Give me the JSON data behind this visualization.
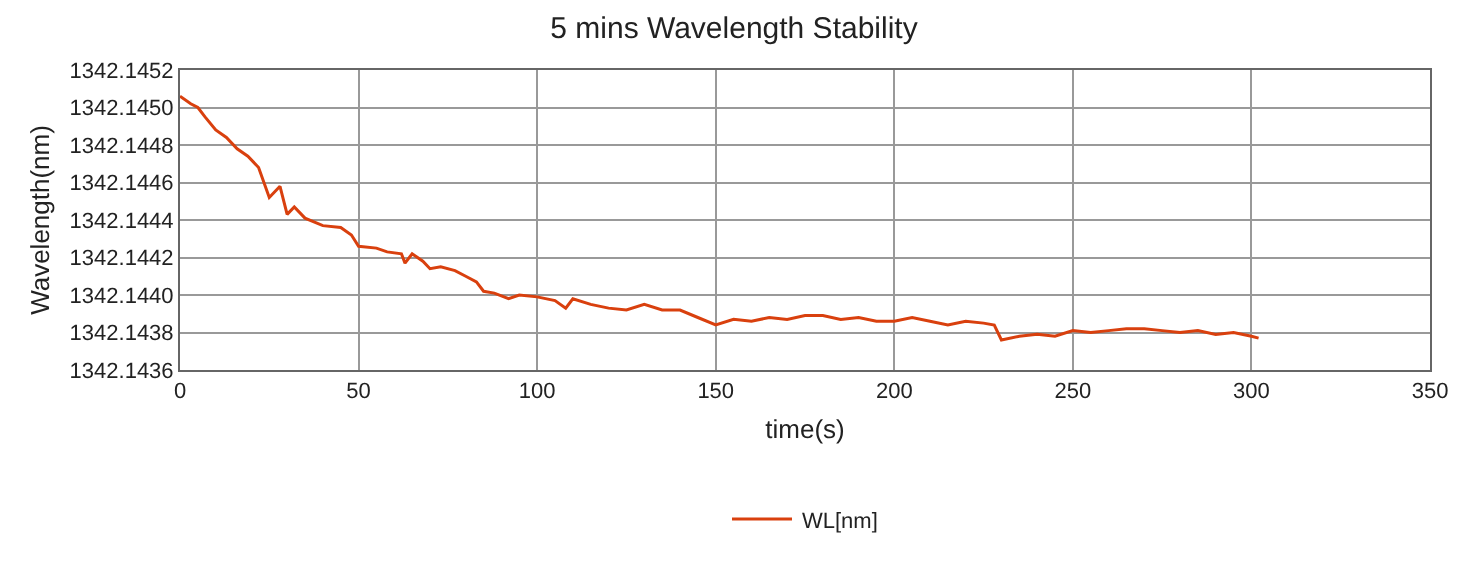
{
  "chart_data": {
    "type": "line",
    "title": "5 mins Wavelength Stability",
    "xlabel": "time(s)",
    "ylabel": "Wavelength(nm)",
    "x": [
      0,
      3,
      5,
      7,
      10,
      13,
      16,
      19,
      22,
      25,
      28,
      30,
      32,
      35,
      40,
      45,
      48,
      50,
      55,
      58,
      62,
      63,
      65,
      68,
      70,
      73,
      77,
      80,
      83,
      85,
      88,
      92,
      95,
      100,
      105,
      108,
      110,
      115,
      120,
      125,
      130,
      135,
      140,
      145,
      150,
      155,
      160,
      165,
      170,
      175,
      180,
      185,
      190,
      195,
      200,
      205,
      210,
      215,
      220,
      225,
      228,
      230,
      235,
      240,
      245,
      250,
      255,
      260,
      265,
      270,
      275,
      280,
      285,
      290,
      295,
      300,
      302
    ],
    "series": [
      {
        "name": "WL[nm]",
        "color": "#d9400e",
        "values": [
          1342.14506,
          1342.14502,
          1342.145,
          1342.14495,
          1342.14488,
          1342.14484,
          1342.14478,
          1342.14474,
          1342.14468,
          1342.14452,
          1342.14458,
          1342.14443,
          1342.14447,
          1342.14441,
          1342.14437,
          1342.14436,
          1342.14432,
          1342.14426,
          1342.14425,
          1342.14423,
          1342.14422,
          1342.14417,
          1342.14422,
          1342.14418,
          1342.14414,
          1342.14415,
          1342.14413,
          1342.1441,
          1342.14407,
          1342.14402,
          1342.14401,
          1342.14398,
          1342.144,
          1342.14399,
          1342.14397,
          1342.14393,
          1342.14398,
          1342.14395,
          1342.14393,
          1342.14392,
          1342.14395,
          1342.14392,
          1342.14392,
          1342.14388,
          1342.14384,
          1342.14387,
          1342.14386,
          1342.14388,
          1342.14387,
          1342.14389,
          1342.14389,
          1342.14387,
          1342.14388,
          1342.14386,
          1342.14386,
          1342.14388,
          1342.14386,
          1342.14384,
          1342.14386,
          1342.14385,
          1342.14384,
          1342.14376,
          1342.14378,
          1342.14379,
          1342.14378,
          1342.14381,
          1342.1438,
          1342.14381,
          1342.14382,
          1342.14382,
          1342.14381,
          1342.1438,
          1342.14381,
          1342.14379,
          1342.1438,
          1342.14378,
          1342.14377
        ]
      }
    ],
    "xlim": [
      0,
      350
    ],
    "xticks": [
      0,
      50,
      100,
      150,
      200,
      250,
      300,
      350
    ],
    "ylim": [
      1342.1436,
      1342.1452
    ],
    "yticks": [
      1342.1436,
      1342.1438,
      {
        "value": 1342.144,
        "label": "1342.1440"
      },
      1342.1442,
      1342.1444,
      1342.1446,
      1342.1448,
      {
        "value": 1342.145,
        "label": "1342.1450"
      },
      1342.1452
    ],
    "grid": true,
    "legend": "bottom",
    "marker": "none",
    "line_style": "solid"
  }
}
